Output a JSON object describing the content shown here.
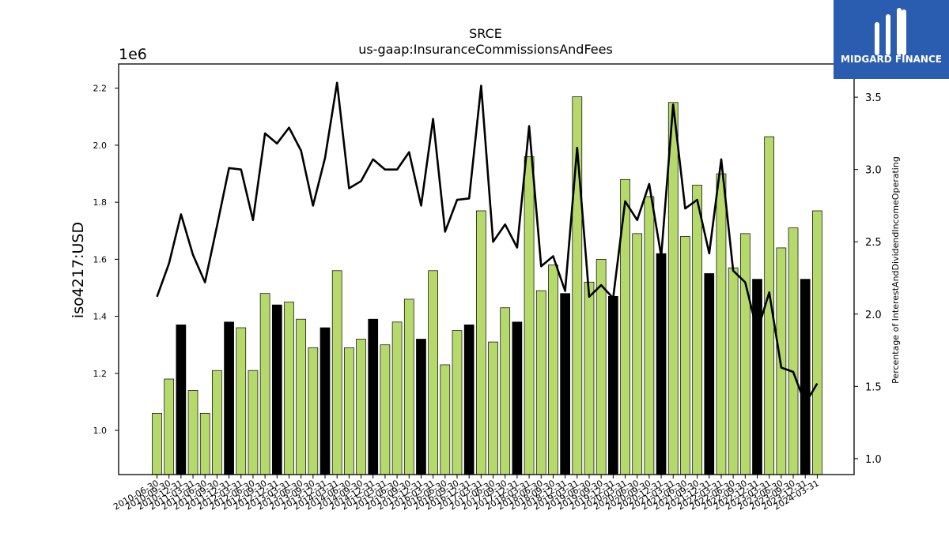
{
  "logo": {
    "text": "MIDGARD FINANCE"
  },
  "chart_data": {
    "type": "bar",
    "title": "SRCE",
    "subtitle": "us-gaap:InsuranceCommissionsAndFees",
    "ylabel": "iso4217:USD",
    "y_offset_label": "1e6",
    "y2label": "Percentage of InterestAndDividendIncomeOperating",
    "ylim": [
      0.845,
      2.285
    ],
    "y2lim": [
      0.89,
      3.73
    ],
    "yticks": [
      "1.0",
      "1.2",
      "1.4",
      "1.6",
      "1.8",
      "2.0",
      "2.2"
    ],
    "y2ticks": [
      "1.0",
      "1.5",
      "2.0",
      "2.5",
      "3.0",
      "3.5"
    ],
    "grid": false,
    "colors": {
      "bar": "#b5d96b",
      "bar_q4": "#000000",
      "line": "#000000"
    },
    "categories": [
      "2010-06-30",
      "2010-09-30",
      "2010-12-31",
      "2011-03-31",
      "2011-06-30",
      "2011-09-30",
      "2011-12-31",
      "2012-03-31",
      "2012-06-30",
      "2012-09-30",
      "2012-12-31",
      "2013-03-31",
      "2013-06-30",
      "2013-09-30",
      "2013-12-31",
      "2014-03-31",
      "2014-06-30",
      "2014-09-30",
      "2014-12-31",
      "2015-03-31",
      "2015-06-30",
      "2015-09-30",
      "2015-12-31",
      "2016-03-31",
      "2016-06-30",
      "2016-09-30",
      "2016-12-31",
      "2017-03-31",
      "2017-06-30",
      "2017-09-30",
      "2017-12-31",
      "2018-03-31",
      "2018-06-30",
      "2018-09-30",
      "2018-12-31",
      "2019-03-31",
      "2019-06-30",
      "2019-09-30",
      "2019-12-31",
      "2020-03-31",
      "2020-06-30",
      "2020-09-30",
      "2020-12-31",
      "2021-03-31",
      "2021-06-30",
      "2021-09-30",
      "2021-12-31",
      "2022-03-31",
      "2022-06-30",
      "2022-09-30",
      "2022-12-31",
      "2023-03-31",
      "2023-06-30",
      "2023-09-30",
      "2023-12-31",
      "2024-03-31"
    ],
    "series": [
      {
        "kind": "bar",
        "axis": "left",
        "values": [
          1.06,
          1.18,
          1.37,
          1.14,
          1.06,
          1.21,
          1.38,
          1.36,
          1.21,
          1.48,
          1.44,
          1.45,
          1.39,
          1.29,
          1.36,
          1.56,
          1.29,
          1.32,
          1.39,
          1.3,
          1.38,
          1.46,
          1.32,
          1.56,
          1.23,
          1.35,
          1.37,
          1.77,
          1.31,
          1.43,
          1.38,
          1.96,
          1.49,
          1.58,
          1.48,
          2.17,
          1.52,
          1.6,
          1.47,
          1.88,
          1.69,
          1.82,
          1.62,
          2.15,
          1.68,
          1.86,
          1.55,
          1.9,
          1.57,
          1.69,
          1.53,
          2.03,
          1.64,
          1.71,
          1.53,
          1.77
        ]
      },
      {
        "kind": "line",
        "axis": "right",
        "values": [
          2.12,
          2.35,
          2.69,
          2.41,
          2.22,
          2.61,
          3.01,
          3.0,
          2.65,
          3.25,
          3.18,
          3.29,
          3.13,
          2.75,
          3.08,
          3.6,
          2.87,
          2.92,
          3.07,
          3.0,
          3.0,
          3.12,
          2.75,
          3.35,
          2.57,
          2.79,
          2.8,
          3.58,
          2.5,
          2.62,
          2.46,
          3.3,
          2.33,
          2.4,
          2.16,
          3.15,
          2.12,
          2.2,
          2.11,
          2.78,
          2.65,
          2.9,
          2.4,
          3.45,
          2.73,
          2.79,
          2.42,
          3.07,
          2.3,
          2.22,
          1.88,
          2.15,
          1.63,
          1.6,
          1.38,
          1.52
        ]
      }
    ]
  }
}
